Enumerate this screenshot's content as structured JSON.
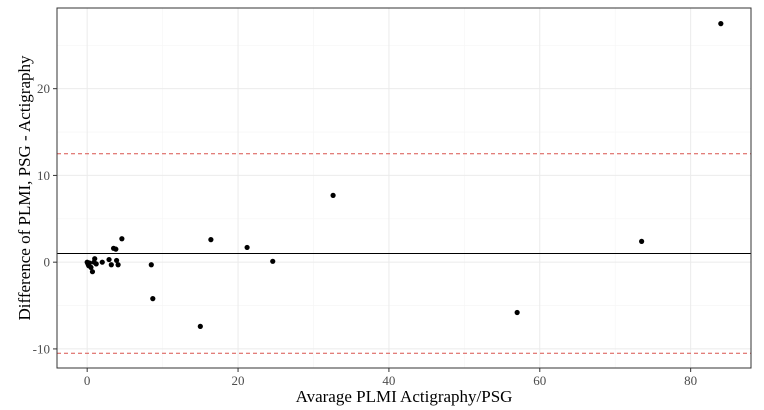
{
  "chart_data": {
    "type": "scatter",
    "title": "",
    "xlabel": "Avarage PLMI Actigraphy/PSG",
    "ylabel": "Difference of PLMI, PSG - Actigraphy",
    "xlim": [
      -4,
      88
    ],
    "ylim": [
      -12.2,
      29.3
    ],
    "x_ticks": [
      0,
      20,
      40,
      60,
      80
    ],
    "y_ticks": [
      -10,
      0,
      10,
      20
    ],
    "x_tick_labels": [
      "0",
      "20",
      "40",
      "60",
      "80"
    ],
    "y_tick_labels": [
      "-10",
      "0",
      "10",
      "20"
    ],
    "grid": true,
    "legend": "none",
    "reference_lines": [
      {
        "name": "mean-difference",
        "y": 1.0,
        "color": "#000000",
        "style": "solid"
      },
      {
        "name": "upper-limit-of-agreement",
        "y": 12.5,
        "color": "#d9534f",
        "style": "dashed"
      },
      {
        "name": "lower-limit-of-agreement",
        "y": -10.5,
        "color": "#d9534f",
        "style": "dashed"
      }
    ],
    "points": [
      {
        "x": 0.0,
        "y": 0.0
      },
      {
        "x": 0.1,
        "y": -0.2
      },
      {
        "x": 0.2,
        "y": -0.4
      },
      {
        "x": 0.3,
        "y": -0.1
      },
      {
        "x": 0.5,
        "y": -0.6
      },
      {
        "x": 0.7,
        "y": -1.1
      },
      {
        "x": 0.9,
        "y": 0.0
      },
      {
        "x": 1.0,
        "y": 0.4
      },
      {
        "x": 1.2,
        "y": -0.2
      },
      {
        "x": 2.0,
        "y": 0.0
      },
      {
        "x": 2.9,
        "y": 0.3
      },
      {
        "x": 3.2,
        "y": -0.3
      },
      {
        "x": 3.5,
        "y": 1.6
      },
      {
        "x": 3.8,
        "y": 1.5
      },
      {
        "x": 3.9,
        "y": 0.2
      },
      {
        "x": 4.1,
        "y": -0.3
      },
      {
        "x": 4.6,
        "y": 2.7
      },
      {
        "x": 8.5,
        "y": -0.3
      },
      {
        "x": 8.7,
        "y": -4.2
      },
      {
        "x": 15.0,
        "y": -7.4
      },
      {
        "x": 16.4,
        "y": 2.6
      },
      {
        "x": 21.2,
        "y": 1.7
      },
      {
        "x": 24.6,
        "y": 0.1
      },
      {
        "x": 32.6,
        "y": 7.7
      },
      {
        "x": 57.0,
        "y": -5.8
      },
      {
        "x": 73.5,
        "y": 2.4
      },
      {
        "x": 84.0,
        "y": 27.5
      }
    ],
    "colors": {
      "point": "#000000",
      "grid_major": "#ebebeb",
      "grid_minor": "#f5f5f5",
      "panel_border": "#333333",
      "tick": "#333333",
      "tick_label": "#4d4d4d"
    }
  }
}
